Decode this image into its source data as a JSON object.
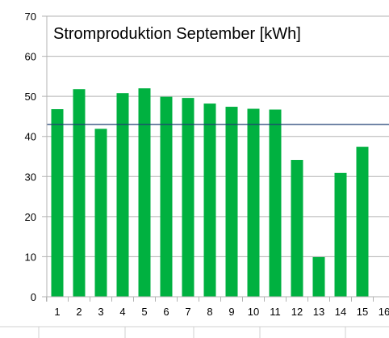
{
  "chart_data": {
    "type": "bar",
    "title": "Stromproduktion September [kWh]",
    "xlabel": "",
    "ylabel": "",
    "categories": [
      "1",
      "2",
      "3",
      "4",
      "5",
      "6",
      "7",
      "8",
      "9",
      "10",
      "11",
      "12",
      "13",
      "14",
      "15",
      "16"
    ],
    "values": [
      46.8,
      51.8,
      41.9,
      50.8,
      52.0,
      49.9,
      49.6,
      48.2,
      47.4,
      46.9,
      46.7,
      34.1,
      9.9,
      30.9,
      37.4,
      null
    ],
    "reference_line": 43.0,
    "ylim": [
      0,
      70
    ],
    "yticks": [
      0,
      10,
      20,
      30,
      40,
      50,
      60,
      70
    ],
    "grid": true,
    "legend": "none",
    "colors": {
      "bar": "#00b140",
      "reference_line": "#1f3f73",
      "grid": "#b3b3b3",
      "axis": "#b3b3b3"
    }
  }
}
